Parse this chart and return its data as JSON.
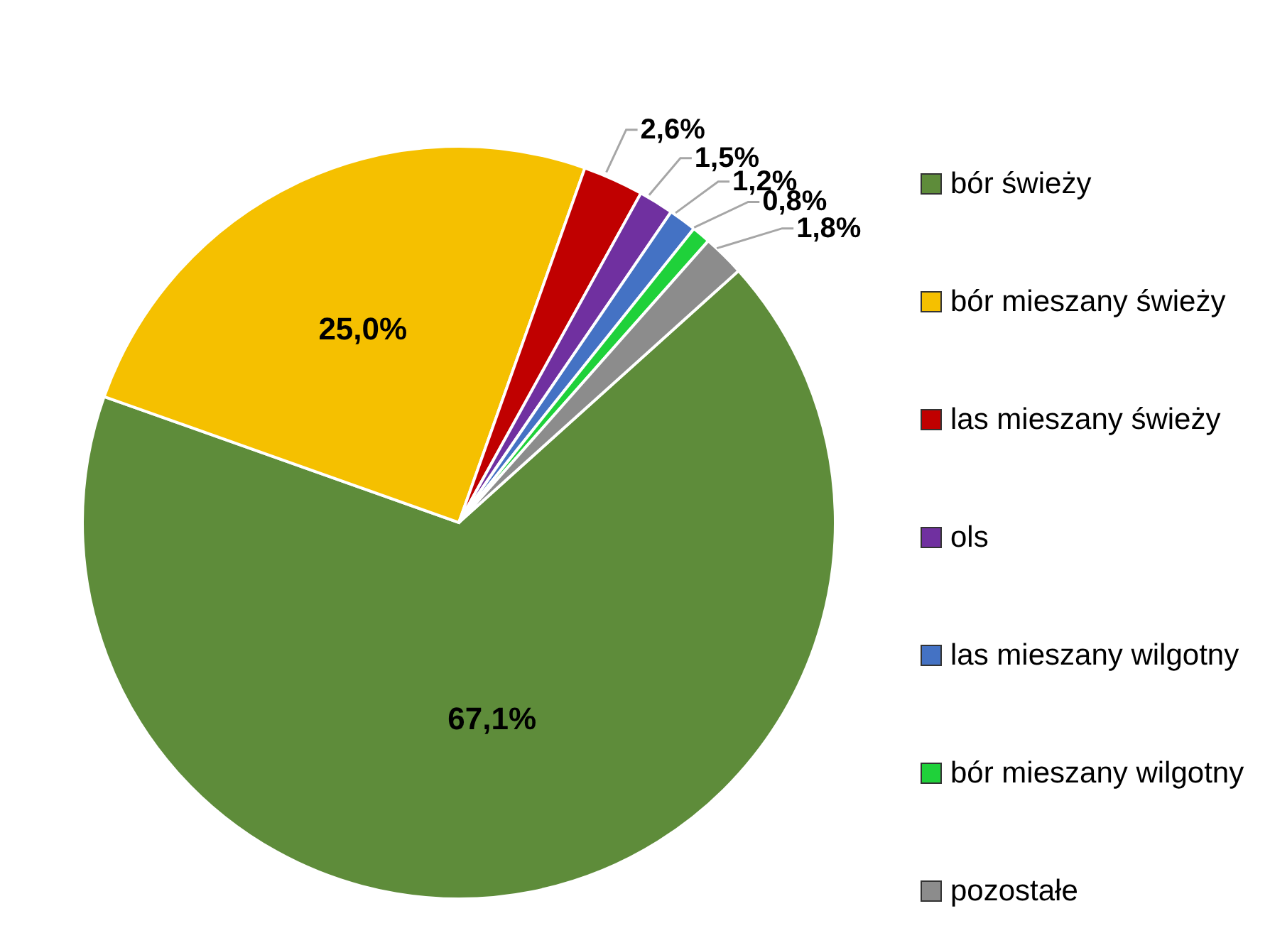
{
  "chart_data": {
    "type": "pie",
    "categories": [
      "bór świeży",
      "bór mieszany świeży",
      "las mieszany świeży",
      "ols",
      "las mieszany wilgotny",
      "bór mieszany wilgotny",
      "pozostałe"
    ],
    "values": [
      67.1,
      25.0,
      2.6,
      1.5,
      1.2,
      0.8,
      1.8
    ],
    "colors": [
      "#5e8c3a",
      "#f5c000",
      "#c00000",
      "#7030a0",
      "#4472c4",
      "#1fd13a",
      "#8c8c8c"
    ],
    "value_labels": [
      "67,1%",
      "25,0%",
      "2,6%",
      "1,5%",
      "1,2%",
      "0,8%",
      "1,8%"
    ],
    "legend": "right"
  }
}
